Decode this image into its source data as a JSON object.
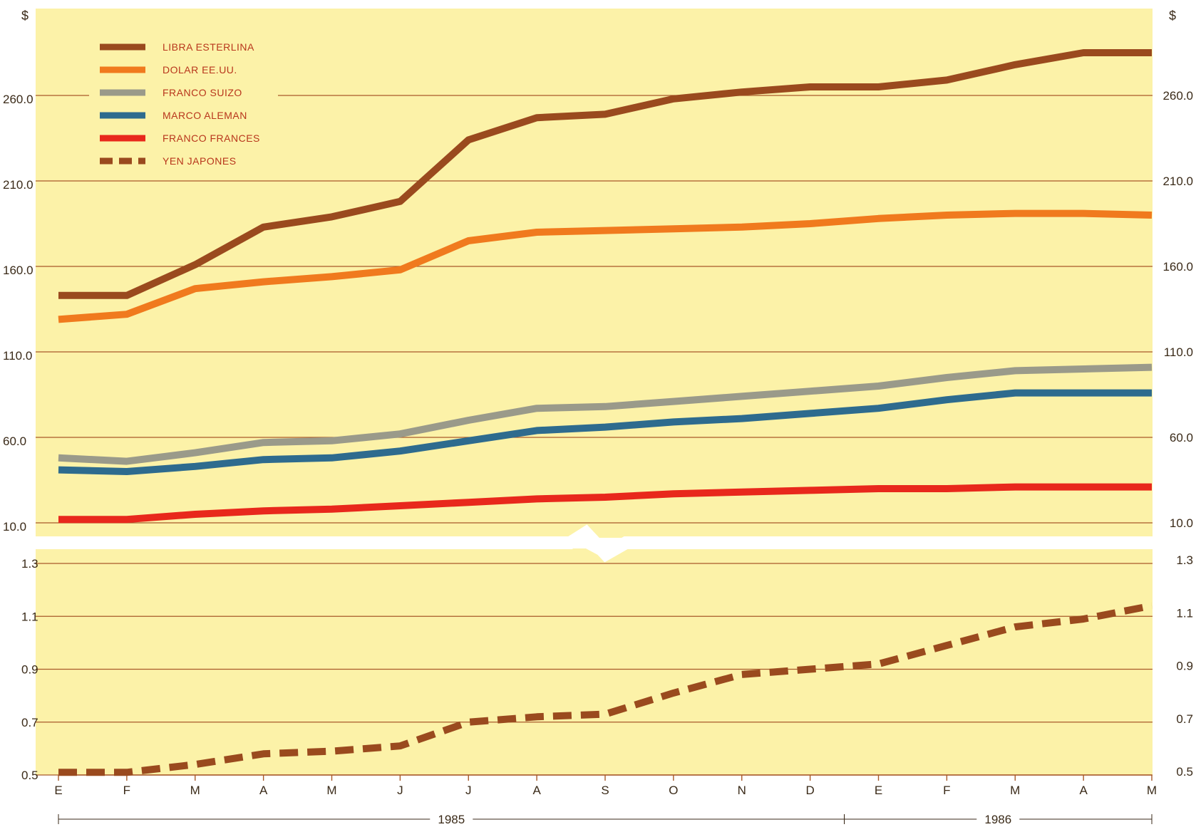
{
  "chart_data": {
    "type": "line",
    "currency_label_left": "$",
    "currency_label_right": "$",
    "x_categories": [
      "E",
      "F",
      "M",
      "A",
      "M",
      "J",
      "J",
      "A",
      "S",
      "O",
      "N",
      "D",
      "E",
      "F",
      "M",
      "A",
      "M"
    ],
    "periods": [
      {
        "label": "1985",
        "start_index": 0,
        "end_index": 11.5
      },
      {
        "label": "1986",
        "start_index": 11.5,
        "end_index": 16
      }
    ],
    "upper_panel": {
      "yticks": [
        10.0,
        60.0,
        110.0,
        160.0,
        210.0,
        260.0
      ],
      "ytick_labels": [
        "10.0",
        "60.0",
        "110.0",
        "160.0",
        "210.0",
        "260.0"
      ],
      "ylim": [
        8,
        287
      ],
      "series": [
        {
          "name": "LIBRA ESTERLINA",
          "color": "#9a4a1e",
          "dashed": false,
          "values": [
            143,
            143,
            161,
            183,
            189,
            198,
            234,
            247,
            249,
            258,
            262,
            265,
            265,
            269,
            278,
            285,
            285
          ]
        },
        {
          "name": "DOLAR EE.UU.",
          "color": "#f07a1e",
          "dashed": false,
          "values": [
            129,
            132,
            147,
            151,
            154,
            158,
            175,
            180,
            181,
            182,
            183,
            185,
            188,
            190,
            191,
            191,
            190
          ]
        },
        {
          "name": "FRANCO SUIZO",
          "color": "#9a9a8a",
          "dashed": false,
          "values": [
            48,
            46,
            51,
            57,
            58,
            62,
            70,
            77,
            78,
            81,
            84,
            87,
            90,
            95,
            99,
            100,
            101
          ]
        },
        {
          "name": "MARCO ALEMAN",
          "color": "#2e6b8e",
          "dashed": false,
          "values": [
            41,
            40,
            43,
            47,
            48,
            52,
            58,
            64,
            66,
            69,
            71,
            74,
            77,
            82,
            86,
            86,
            86
          ]
        },
        {
          "name": "FRANCO FRANCES",
          "color": "#e8281c",
          "dashed": false,
          "values": [
            12,
            12,
            15,
            17,
            18,
            20,
            22,
            24,
            25,
            27,
            28,
            29,
            30,
            30,
            31,
            31,
            31
          ]
        }
      ]
    },
    "lower_panel": {
      "yticks": [
        0.5,
        0.7,
        0.9,
        1.1,
        1.3
      ],
      "ytick_labels": [
        "0.5",
        "0.7",
        "0.9",
        "1.1",
        "1.3"
      ],
      "ylim": [
        0.48,
        1.37
      ],
      "series": [
        {
          "name": "YEN JAPONES",
          "color": "#9a4a1e",
          "dashed": true,
          "values": [
            0.51,
            0.51,
            0.54,
            0.58,
            0.59,
            0.61,
            0.7,
            0.72,
            0.73,
            0.81,
            0.88,
            0.9,
            0.92,
            0.99,
            1.06,
            1.09,
            1.14
          ]
        }
      ]
    },
    "legend": {
      "placement": "top-left",
      "entries": [
        {
          "name": "LIBRA ESTERLINA",
          "color": "#9a4a1e",
          "dashed": false
        },
        {
          "name": "DOLAR EE.UU.",
          "color": "#f07a1e",
          "dashed": false
        },
        {
          "name": "FRANCO SUIZO",
          "color": "#9a9a8a",
          "dashed": false
        },
        {
          "name": "MARCO ALEMAN",
          "color": "#2e6b8e",
          "dashed": false
        },
        {
          "name": "FRANCO FRANCES",
          "color": "#e8281c",
          "dashed": false
        },
        {
          "name": "YEN JAPONES",
          "color": "#9a4a1e",
          "dashed": true
        }
      ]
    },
    "colors": {
      "plot_background": "#fcf2a8",
      "gridline": "#a85a2a",
      "axis_text": "#3a2a18"
    },
    "grid": true
  }
}
